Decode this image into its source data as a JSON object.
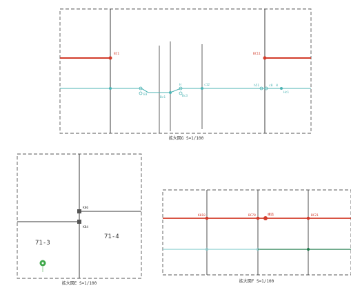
{
  "colors": {
    "background": "#ffffff",
    "frame": "#555555",
    "structure": "#3a3a3a",
    "red_line": "#d23b2a",
    "cyan_line": "#4bb3b3",
    "green_line": "#1f7a4a",
    "marker_green": "#3fa84a"
  },
  "panels": {
    "top": {
      "caption": "拡大図G S=1/100",
      "red_left_label": "BC1",
      "red_right_label": "BC11",
      "cyan_labels": [
        "c12",
        "H",
        "h51",
        "c8",
        "H"
      ],
      "cyan_sub_labels": [
        "B3",
        "Bc1",
        "Bc3",
        "Hc1"
      ]
    },
    "bottom_left": {
      "caption": "拡大図E S=1/100",
      "lot_left": "71-3",
      "lot_right": "71-4",
      "node_top_label": "K86",
      "node_bottom_label": "K84"
    },
    "bottom_right": {
      "caption": "拡大図F S=1/100",
      "red_labels": [
        "K018",
        "BC78",
        "構造",
        "BC21"
      ]
    }
  }
}
